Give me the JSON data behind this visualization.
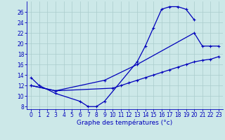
{
  "xlabel": "Graphe des températures (°c)",
  "bg_color": "#cce8e8",
  "line_color": "#0000bb",
  "grid_color": "#aacccc",
  "ylim": [
    7.5,
    28
  ],
  "xlim": [
    -0.5,
    23.5
  ],
  "yticks": [
    8,
    10,
    12,
    14,
    16,
    18,
    20,
    22,
    24,
    26
  ],
  "xticks": [
    0,
    1,
    2,
    3,
    4,
    5,
    6,
    7,
    8,
    9,
    10,
    11,
    12,
    13,
    14,
    15,
    16,
    17,
    18,
    19,
    20,
    21,
    22,
    23
  ],
  "line1_x": [
    0,
    1,
    3,
    6,
    7,
    8,
    9,
    13,
    14,
    15,
    16,
    17,
    18,
    19,
    20
  ],
  "line1_y": [
    13.5,
    12.0,
    10.5,
    9.0,
    8.0,
    8.0,
    9.0,
    16.5,
    19.5,
    23.0,
    26.5,
    27.0,
    27.0,
    26.5,
    24.5
  ],
  "line2_x": [
    0,
    3,
    9,
    13,
    20,
    21,
    22,
    23
  ],
  "line2_y": [
    12.0,
    11.0,
    13.0,
    16.0,
    22.0,
    19.5,
    19.5,
    19.5
  ],
  "line3_x": [
    0,
    3,
    10,
    11,
    12,
    13,
    14,
    15,
    16,
    17,
    18,
    19,
    20,
    21,
    22,
    23
  ],
  "line3_y": [
    12.0,
    11.0,
    11.5,
    12.0,
    12.5,
    13.0,
    13.5,
    14.0,
    14.5,
    15.0,
    15.5,
    16.0,
    16.5,
    16.8,
    17.0,
    17.5
  ],
  "figsize": [
    3.2,
    2.0
  ],
  "dpi": 100,
  "tick_fontsize": 5.5,
  "xlabel_fontsize": 6.5,
  "lw": 0.9,
  "ms": 3.0
}
